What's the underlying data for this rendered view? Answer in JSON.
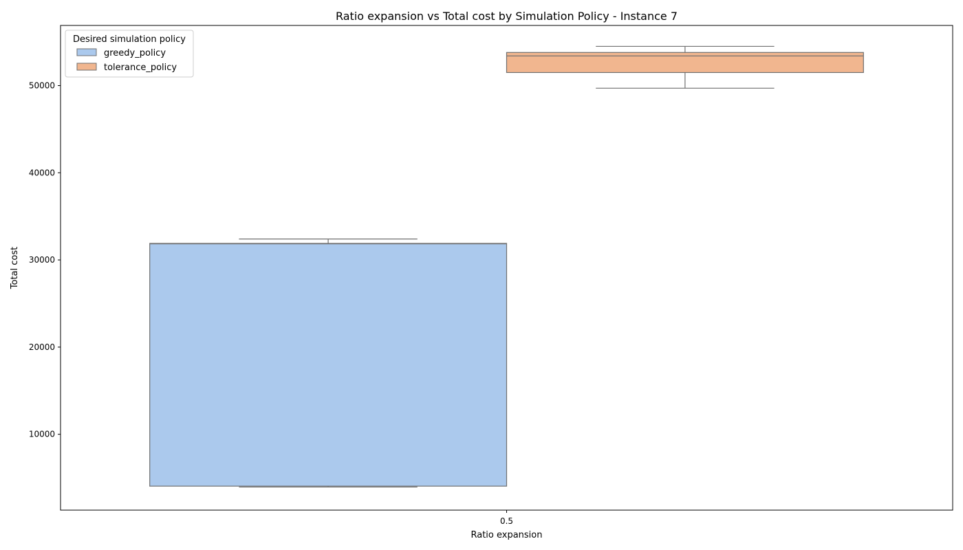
{
  "chart_data": {
    "type": "box",
    "title": "Ratio expansion vs Total cost by Simulation Policy - Instance 7",
    "xlabel": "Ratio expansion",
    "ylabel": "Total cost",
    "categories": [
      "0.5"
    ],
    "ylim": [
      1300,
      56900
    ],
    "yticks": [
      10000,
      20000,
      30000,
      40000,
      50000
    ],
    "grid": false,
    "legend": {
      "title": "Desired simulation policy",
      "placement": "top-left"
    },
    "series": [
      {
        "name": "greedy_policy",
        "color": "#abc9ed",
        "boxes": [
          {
            "category": "0.5",
            "whisker_low": 3950,
            "q1": 4050,
            "median": 31850,
            "q3": 31900,
            "whisker_high": 32400
          }
        ]
      },
      {
        "name": "tolerance_policy",
        "color": "#f1b68f",
        "boxes": [
          {
            "category": "0.5",
            "whisker_low": 49700,
            "q1": 51500,
            "median": 53400,
            "q3": 53800,
            "whisker_high": 54500
          }
        ]
      }
    ],
    "edge_color": "#6f6f6f"
  }
}
